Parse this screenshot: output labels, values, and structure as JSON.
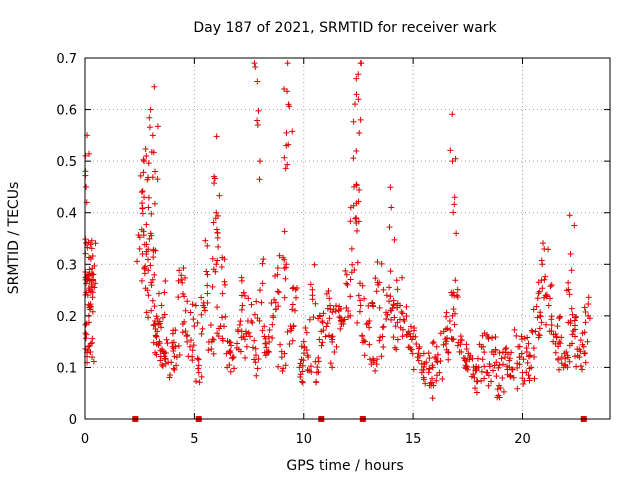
{
  "chart_data": {
    "type": "scatter",
    "title": "Day 187 of 2021, SRMTID for receiver wark",
    "xlabel": "GPS time / hours",
    "ylabel": "SRMTID / TECUs",
    "xlim": [
      0,
      24
    ],
    "ylim": [
      0,
      0.7
    ],
    "xticks": [
      "0",
      "5",
      "10",
      "15",
      "20"
    ],
    "yticks": [
      "0",
      "0.1",
      "0.2",
      "0.3",
      "0.4",
      "0.5",
      "0.6",
      "0.7"
    ],
    "grid": true,
    "marker": "+",
    "color": "#e00000",
    "series": [
      {
        "name": "SRMTID",
        "x": [
          0.05,
          0.08,
          0.1,
          0.12,
          0.15,
          0.18,
          0.2,
          0.22,
          0.25,
          0.3,
          0.35,
          2.5,
          2.6,
          2.7,
          2.8,
          2.9,
          3.0,
          3.1,
          3.2,
          3.3,
          3.4,
          3.5,
          3.6,
          3.8,
          4.0,
          4.2,
          4.4,
          4.6,
          4.8,
          5.0,
          5.2,
          5.4,
          5.6,
          5.8,
          6.0,
          6.2,
          6.4,
          6.6,
          6.8,
          7.0,
          7.2,
          7.4,
          7.6,
          7.8,
          8.0,
          8.2,
          8.4,
          8.6,
          8.8,
          9.0,
          9.2,
          9.4,
          9.6,
          9.8,
          10.0,
          10.2,
          10.4,
          10.6,
          10.8,
          11.0,
          11.2,
          11.4,
          11.6,
          11.8,
          12.0,
          12.2,
          12.4,
          12.6,
          12.8,
          13.0,
          13.2,
          13.4,
          13.6,
          13.8,
          14.0,
          14.2,
          14.4,
          14.6,
          14.8,
          15.0,
          15.2,
          15.4,
          15.6,
          15.8,
          16.0,
          16.2,
          16.4,
          16.6,
          16.8,
          17.0,
          17.2,
          17.4,
          17.6,
          17.8,
          18.0,
          18.2,
          18.4,
          18.6,
          18.8,
          19.0,
          19.2,
          19.4,
          19.6,
          19.8,
          20.0,
          20.2,
          20.4,
          20.6,
          20.8,
          21.0,
          21.2,
          21.4,
          21.6,
          21.8,
          22.0,
          22.2,
          22.4,
          22.6,
          22.8,
          23.0,
          2.7,
          2.8,
          2.9,
          3.0,
          3.1,
          3.2,
          5.9,
          6.0,
          7.9,
          8.0,
          9.1,
          9.2,
          9.3,
          12.3,
          12.4,
          12.5,
          12.6,
          14.0,
          16.8,
          16.9,
          20.9,
          22.2
        ],
        "y": [
          0.45,
          0.42,
          0.28,
          0.27,
          0.14,
          0.2,
          0.29,
          0.25,
          0.13,
          0.26,
          0.28,
          0.33,
          0.44,
          0.5,
          0.32,
          0.24,
          0.36,
          0.27,
          0.19,
          0.17,
          0.15,
          0.22,
          0.13,
          0.11,
          0.14,
          0.12,
          0.27,
          0.21,
          0.14,
          0.18,
          0.09,
          0.22,
          0.28,
          0.15,
          0.3,
          0.18,
          0.26,
          0.13,
          0.12,
          0.17,
          0.22,
          0.14,
          0.19,
          0.11,
          0.25,
          0.16,
          0.13,
          0.2,
          0.28,
          0.12,
          0.3,
          0.18,
          0.21,
          0.1,
          0.15,
          0.12,
          0.24,
          0.09,
          0.17,
          0.16,
          0.22,
          0.13,
          0.21,
          0.19,
          0.26,
          0.33,
          0.38,
          0.22,
          0.15,
          0.19,
          0.11,
          0.26,
          0.16,
          0.24,
          0.21,
          0.18,
          0.22,
          0.19,
          0.17,
          0.16,
          0.12,
          0.09,
          0.11,
          0.07,
          0.12,
          0.09,
          0.17,
          0.13,
          0.2,
          0.24,
          0.13,
          0.1,
          0.12,
          0.08,
          0.1,
          0.14,
          0.09,
          0.13,
          0.11,
          0.06,
          0.12,
          0.1,
          0.08,
          0.14,
          0.09,
          0.13,
          0.1,
          0.17,
          0.2,
          0.27,
          0.22,
          0.15,
          0.18,
          0.12,
          0.13,
          0.19,
          0.16,
          0.12,
          0.14,
          0.2,
          0.43,
          0.51,
          0.41,
          0.6,
          0.55,
          0.48,
          0.47,
          0.4,
          0.57,
          0.5,
          0.64,
          0.53,
          0.61,
          0.45,
          0.66,
          0.62,
          0.58,
          0.41,
          0.5,
          0.43,
          0.3,
          0.32
        ]
      }
    ],
    "baseline_markers_x": [
      2.3,
      5.2,
      10.8,
      12.7,
      22.8
    ]
  }
}
